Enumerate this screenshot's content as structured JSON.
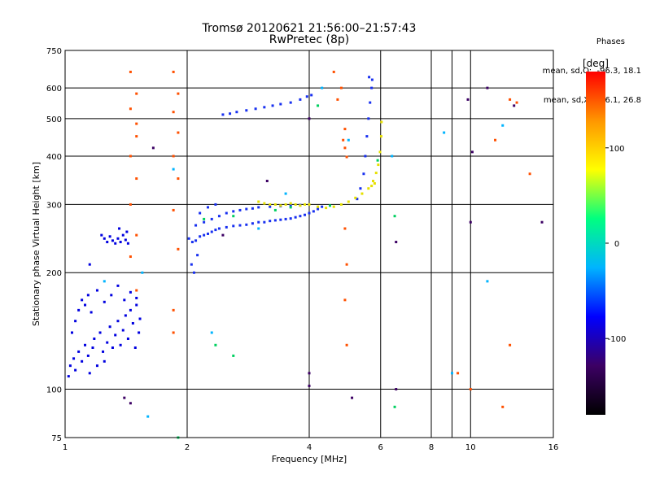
{
  "title_line1": "Tromsø 20120621 21:56:00–21:57:43",
  "title_line2": "RwPretec (8p)",
  "info": {
    "heading": "Phases",
    "line1": "mean, sd,O:  -96.3, 18.1",
    "line2": "mean, sd,X:   86.1, 26.8"
  },
  "chart_data": {
    "type": "scatter",
    "xlabel": "Frequency [MHz]",
    "ylabel": "Stationary phase Virtual Height [km]",
    "xscale": "log",
    "yscale": "log",
    "xlim": [
      1,
      16
    ],
    "ylim": [
      75,
      750
    ],
    "x_ticks": [
      1,
      2,
      4,
      6,
      8,
      10,
      16
    ],
    "y_ticks": [
      75,
      100,
      200,
      300,
      400,
      500,
      600,
      750
    ],
    "grid": true,
    "colorbar": {
      "label": "[deg]",
      "range": [
        -180,
        180
      ],
      "ticks": [
        100,
        0,
        -100
      ],
      "colors": [
        "#000000",
        "#3c0064",
        "#0000ff",
        "#00b4ff",
        "#00ff80",
        "#ffff00",
        "#ff9600",
        "#ff0000"
      ]
    },
    "series": [
      {
        "color": "#0000e0",
        "points": [
          [
            1.02,
            108
          ],
          [
            1.03,
            115
          ],
          [
            1.05,
            120
          ],
          [
            1.06,
            112
          ],
          [
            1.08,
            125
          ],
          [
            1.1,
            118
          ],
          [
            1.12,
            130
          ],
          [
            1.14,
            122
          ],
          [
            1.15,
            110
          ],
          [
            1.17,
            128
          ],
          [
            1.18,
            135
          ],
          [
            1.2,
            115
          ],
          [
            1.22,
            140
          ],
          [
            1.24,
            125
          ],
          [
            1.25,
            118
          ],
          [
            1.27,
            132
          ],
          [
            1.29,
            145
          ],
          [
            1.31,
            128
          ],
          [
            1.33,
            138
          ],
          [
            1.35,
            150
          ],
          [
            1.37,
            130
          ],
          [
            1.39,
            142
          ],
          [
            1.41,
            155
          ],
          [
            1.43,
            135
          ],
          [
            1.45,
            160
          ],
          [
            1.47,
            148
          ],
          [
            1.49,
            128
          ],
          [
            1.5,
            165
          ],
          [
            1.52,
            140
          ],
          [
            1.53,
            152
          ],
          [
            1.04,
            140
          ],
          [
            1.06,
            150
          ],
          [
            1.08,
            160
          ],
          [
            1.1,
            170
          ],
          [
            1.12,
            165
          ],
          [
            1.14,
            175
          ],
          [
            1.16,
            158
          ],
          [
            1.2,
            180
          ],
          [
            1.25,
            168
          ],
          [
            1.3,
            175
          ],
          [
            1.35,
            185
          ],
          [
            1.4,
            170
          ],
          [
            1.45,
            178
          ],
          [
            1.5,
            172
          ],
          [
            1.23,
            250
          ],
          [
            1.25,
            245
          ],
          [
            1.27,
            240
          ],
          [
            1.29,
            248
          ],
          [
            1.31,
            242
          ],
          [
            1.33,
            238
          ],
          [
            1.35,
            245
          ],
          [
            1.37,
            240
          ],
          [
            1.39,
            250
          ],
          [
            1.41,
            243
          ],
          [
            1.43,
            238
          ],
          [
            1.36,
            260
          ],
          [
            1.42,
            255
          ],
          [
            1.15,
            210
          ]
        ]
      },
      {
        "color": "#1830f0",
        "points": [
          [
            2.02,
            245
          ],
          [
            2.06,
            240
          ],
          [
            2.1,
            242
          ],
          [
            2.15,
            248
          ],
          [
            2.2,
            250
          ],
          [
            2.25,
            252
          ],
          [
            2.3,
            255
          ],
          [
            2.35,
            258
          ],
          [
            2.4,
            260
          ],
          [
            2.5,
            262
          ],
          [
            2.6,
            264
          ],
          [
            2.7,
            265
          ],
          [
            2.8,
            266
          ],
          [
            2.9,
            268
          ],
          [
            3.0,
            270
          ],
          [
            3.1,
            270
          ],
          [
            3.2,
            272
          ],
          [
            3.3,
            273
          ],
          [
            3.4,
            274
          ],
          [
            3.5,
            275
          ],
          [
            3.6,
            276
          ],
          [
            3.7,
            278
          ],
          [
            3.8,
            280
          ],
          [
            3.9,
            282
          ],
          [
            4.0,
            285
          ],
          [
            4.1,
            288
          ],
          [
            4.2,
            292
          ],
          [
            4.3,
            296
          ],
          [
            2.1,
            265
          ],
          [
            2.2,
            270
          ],
          [
            2.3,
            275
          ],
          [
            2.4,
            280
          ],
          [
            2.5,
            285
          ],
          [
            2.6,
            288
          ],
          [
            2.7,
            290
          ],
          [
            2.8,
            292
          ],
          [
            2.9,
            293
          ],
          [
            3.0,
            295
          ],
          [
            3.2,
            296
          ],
          [
            3.4,
            297
          ],
          [
            3.6,
            298
          ],
          [
            3.8,
            299
          ],
          [
            2.15,
            285
          ],
          [
            2.25,
            295
          ],
          [
            2.35,
            300
          ],
          [
            2.05,
            210
          ],
          [
            2.08,
            200
          ],
          [
            2.12,
            222
          ],
          [
            2.45,
            512
          ],
          [
            2.55,
            515
          ],
          [
            2.65,
            520
          ],
          [
            2.8,
            525
          ],
          [
            2.95,
            530
          ],
          [
            3.1,
            535
          ],
          [
            3.25,
            540
          ],
          [
            3.4,
            545
          ],
          [
            3.6,
            550
          ],
          [
            3.8,
            560
          ],
          [
            3.95,
            570
          ],
          [
            4.05,
            575
          ],
          [
            5.25,
            310
          ],
          [
            5.35,
            330
          ],
          [
            5.45,
            360
          ],
          [
            5.5,
            400
          ],
          [
            5.55,
            450
          ],
          [
            5.6,
            500
          ],
          [
            5.65,
            550
          ],
          [
            5.7,
            600
          ],
          [
            5.72,
            630
          ],
          [
            5.62,
            640
          ]
        ]
      },
      {
        "color": "#e6e000",
        "points": [
          [
            3.0,
            305
          ],
          [
            3.1,
            302
          ],
          [
            3.2,
            300
          ],
          [
            3.3,
            300
          ],
          [
            3.4,
            298
          ],
          [
            3.5,
            300
          ],
          [
            3.6,
            302
          ],
          [
            3.7,
            300
          ],
          [
            3.8,
            298
          ],
          [
            3.9,
            300
          ],
          [
            4.0,
            300
          ],
          [
            4.2,
            296
          ],
          [
            4.4,
            294
          ],
          [
            4.6,
            296
          ],
          [
            4.8,
            300
          ],
          [
            5.0,
            305
          ],
          [
            5.2,
            312
          ],
          [
            5.4,
            320
          ],
          [
            5.6,
            330
          ],
          [
            5.75,
            345
          ],
          [
            5.85,
            362
          ],
          [
            5.92,
            380
          ],
          [
            5.98,
            410
          ],
          [
            6.02,
            450
          ],
          [
            6.03,
            490
          ],
          [
            5.8,
            340
          ],
          [
            5.7,
            335
          ]
        ]
      },
      {
        "color": "#00d060",
        "points": [
          [
            2.2,
            275
          ],
          [
            2.6,
            280
          ],
          [
            3.3,
            290
          ],
          [
            3.6,
            295
          ],
          [
            4.5,
            298
          ],
          [
            5.9,
            390
          ],
          [
            4.2,
            540
          ],
          [
            2.35,
            130
          ],
          [
            2.6,
            122
          ],
          [
            1.9,
            75
          ],
          [
            6.5,
            280
          ],
          [
            6.5,
            90
          ]
        ]
      },
      {
        "color": "#ff5000",
        "points": [
          [
            1.45,
            660
          ],
          [
            1.5,
            580
          ],
          [
            1.45,
            530
          ],
          [
            1.5,
            485
          ],
          [
            1.5,
            450
          ],
          [
            1.45,
            400
          ],
          [
            1.5,
            350
          ],
          [
            1.45,
            300
          ],
          [
            1.5,
            250
          ],
          [
            1.45,
            220
          ],
          [
            1.5,
            180
          ],
          [
            1.85,
            660
          ],
          [
            1.9,
            580
          ],
          [
            1.85,
            520
          ],
          [
            1.9,
            460
          ],
          [
            1.85,
            400
          ],
          [
            1.9,
            350
          ],
          [
            1.85,
            290
          ],
          [
            1.9,
            230
          ],
          [
            1.85,
            160
          ],
          [
            1.85,
            140
          ],
          [
            4.6,
            660
          ],
          [
            4.8,
            600
          ],
          [
            4.7,
            560
          ],
          [
            4.9,
            470
          ],
          [
            4.85,
            440
          ],
          [
            4.9,
            420
          ],
          [
            4.95,
            398
          ],
          [
            4.9,
            260
          ],
          [
            4.95,
            210
          ],
          [
            4.9,
            170
          ],
          [
            4.95,
            130
          ],
          [
            13.0,
            550
          ],
          [
            12.5,
            560
          ],
          [
            14.0,
            360
          ],
          [
            11.5,
            440
          ],
          [
            10.0,
            100
          ],
          [
            9.3,
            110
          ],
          [
            12.0,
            90
          ],
          [
            12.5,
            130
          ]
        ]
      },
      {
        "color": "#00b4ff",
        "points": [
          [
            1.6,
            85
          ],
          [
            1.55,
            200
          ],
          [
            1.25,
            190
          ],
          [
            1.85,
            370
          ],
          [
            2.3,
            140
          ],
          [
            3.5,
            320
          ],
          [
            3.0,
            260
          ],
          [
            4.3,
            600
          ],
          [
            5.0,
            440
          ],
          [
            6.4,
            400
          ],
          [
            9.0,
            110
          ],
          [
            8.6,
            460
          ],
          [
            11.0,
            190
          ],
          [
            12.0,
            480
          ]
        ]
      },
      {
        "color": "#3c0064",
        "points": [
          [
            1.4,
            95
          ],
          [
            1.45,
            92
          ],
          [
            1.65,
            420
          ],
          [
            2.45,
            250
          ],
          [
            3.15,
            345
          ],
          [
            4.0,
            500
          ],
          [
            4.0,
            110
          ],
          [
            4.0,
            102
          ],
          [
            5.1,
            95
          ],
          [
            6.55,
            240
          ],
          [
            6.55,
            100
          ],
          [
            9.85,
            560
          ],
          [
            10.1,
            410
          ],
          [
            10.0,
            270
          ],
          [
            11.0,
            600
          ],
          [
            12.8,
            540
          ],
          [
            15.0,
            270
          ]
        ]
      }
    ]
  }
}
